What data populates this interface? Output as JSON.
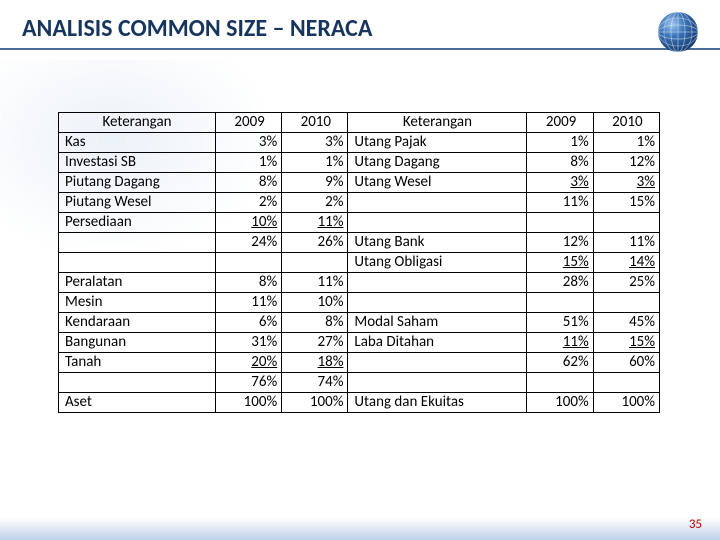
{
  "title": "ANALISIS COMMON SIZE – NERACA",
  "page_number": "35",
  "colors": {
    "title": "#17365d",
    "underline": "#4a6a9a",
    "border": "#000000",
    "pagenum": "#c00000",
    "globe_blue": "#2a5aa0",
    "globe_highlight": "#7fb3e6"
  },
  "table": {
    "headers": {
      "keterangan": "Keterangan",
      "y2009": "2009",
      "y2010": "2010"
    },
    "rows": [
      {
        "l": "Kas",
        "a": "3%",
        "b": "3%",
        "r": "Utang Pajak",
        "c": "1%",
        "d": "1%",
        "ul": null
      },
      {
        "l": "Investasi SB",
        "a": "1%",
        "b": "1%",
        "r": "Utang Dagang",
        "c": "8%",
        "d": "12%",
        "ul": null
      },
      {
        "l": "Piutang Dagang",
        "a": "8%",
        "b": "9%",
        "r": "Utang Wesel",
        "c": "3%",
        "d": "3%",
        "ul": "cd"
      },
      {
        "l": "Piutang Wesel",
        "a": "2%",
        "b": "2%",
        "r": "",
        "c": "11%",
        "d": "15%",
        "ul": null
      },
      {
        "l": "Persediaan",
        "a": "10%",
        "b": "11%",
        "r": "",
        "c": "",
        "d": "",
        "ul": "ab"
      },
      {
        "l": "",
        "a": "24%",
        "b": "26%",
        "r": "Utang Bank",
        "c": "12%",
        "d": "11%",
        "ul": null
      },
      {
        "l": "",
        "a": "",
        "b": "",
        "r": "Utang Obligasi",
        "c": "15%",
        "d": "14%",
        "ul": "cd"
      },
      {
        "l": "Peralatan",
        "a": "8%",
        "b": "11%",
        "r": "",
        "c": "28%",
        "d": "25%",
        "ul": null
      },
      {
        "l": "Mesin",
        "a": "11%",
        "b": "10%",
        "r": "",
        "c": "",
        "d": "",
        "ul": null
      },
      {
        "l": "Kendaraan",
        "a": "6%",
        "b": "8%",
        "r": "Modal Saham",
        "c": "51%",
        "d": "45%",
        "ul": null
      },
      {
        "l": "Bangunan",
        "a": "31%",
        "b": "27%",
        "r": "Laba Ditahan",
        "c": "11%",
        "d": "15%",
        "ul": "cd"
      },
      {
        "l": "Tanah",
        "a": "20%",
        "b": "18%",
        "r": "",
        "c": "62%",
        "d": "60%",
        "ul": "ab"
      },
      {
        "l": "",
        "a": "76%",
        "b": "74%",
        "r": "",
        "c": "",
        "d": "",
        "ul": null
      },
      {
        "l": "Aset",
        "a": "100%",
        "b": "100%",
        "r": "Utang dan Ekuitas",
        "c": "100%",
        "d": "100%",
        "ul": null
      }
    ]
  }
}
